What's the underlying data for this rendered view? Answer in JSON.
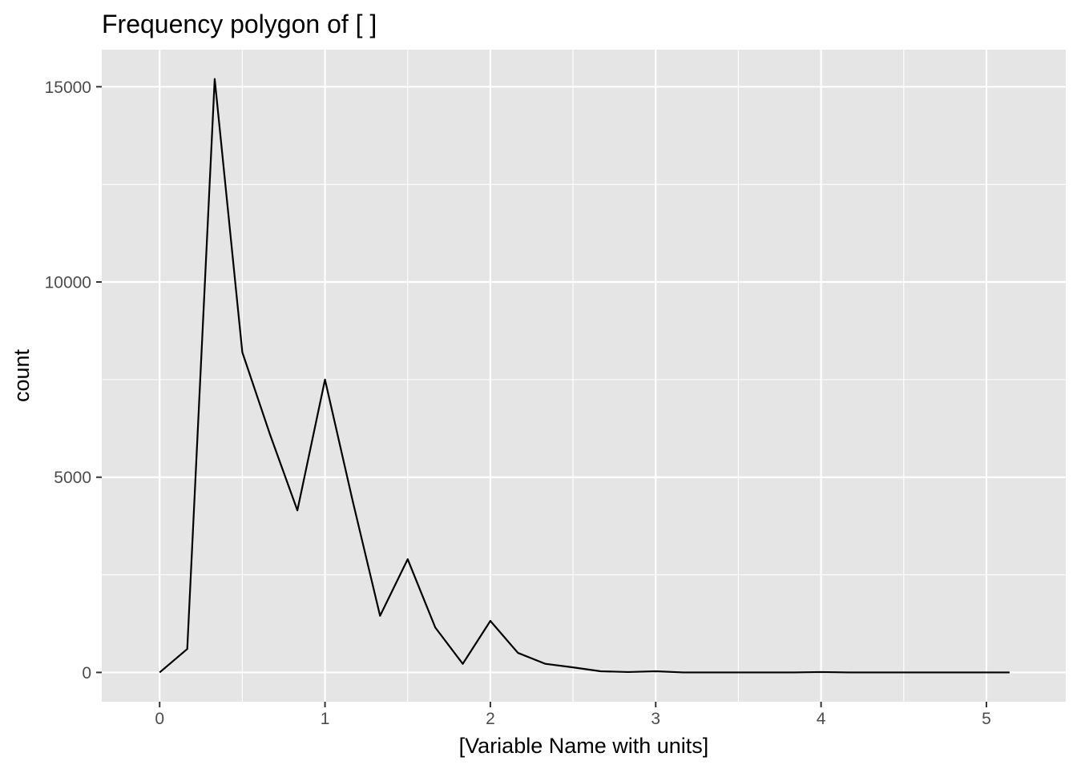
{
  "chart_data": {
    "type": "line",
    "title": "Frequency polygon of [ ]",
    "xlabel": "[Variable Name with units]",
    "ylabel": "count",
    "xlim": [
      -0.35,
      5.48
    ],
    "ylim": [
      -750,
      15950
    ],
    "x_ticks": [
      0,
      1,
      2,
      3,
      4,
      5
    ],
    "x_tick_labels": [
      "0",
      "1",
      "2",
      "3",
      "4",
      "5"
    ],
    "x_minor_ticks": [
      0.5,
      1.5,
      2.5,
      3.5,
      4.5
    ],
    "y_ticks": [
      0,
      5000,
      10000,
      15000
    ],
    "y_tick_labels": [
      "0",
      "5000",
      "10000",
      "15000"
    ],
    "y_minor_ticks": [
      2500,
      7500,
      12500
    ],
    "grid": true,
    "panel_background": "#e5e5e5",
    "grid_color": "#ffffff",
    "line_color": "#000000",
    "series": [
      {
        "x": [
          0,
          0.167,
          0.333,
          0.5,
          0.667,
          0.833,
          1.0,
          1.167,
          1.333,
          1.5,
          1.667,
          1.833,
          2.0,
          2.167,
          2.333,
          2.5,
          2.667,
          2.833,
          3.0,
          3.167,
          3.333,
          3.5,
          3.667,
          3.833,
          4.0,
          4.167,
          4.333,
          4.5,
          4.667,
          4.833,
          5.0,
          5.14
        ],
        "y": [
          0,
          600,
          15200,
          8200,
          6100,
          4150,
          7500,
          4400,
          1450,
          2900,
          1150,
          220,
          1320,
          500,
          220,
          130,
          30,
          10,
          30,
          0,
          0,
          0,
          0,
          0,
          10,
          0,
          0,
          0,
          0,
          0,
          0,
          0
        ]
      }
    ]
  }
}
